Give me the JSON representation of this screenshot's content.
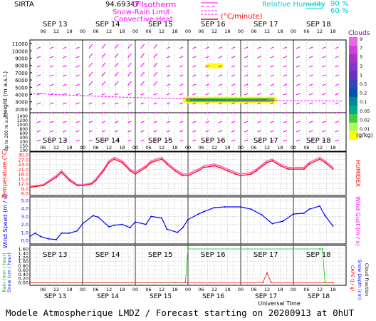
{
  "header": {
    "station": "SIRTA",
    "coords": "94.69347",
    "legend": {
      "isotherm": "0°Isotherm",
      "snow_rain_limit": "Snow-Rain Limit",
      "convective_heat": "Convective Heat.",
      "convective_unit": "(°C/minute)",
      "rh_label": "Relative Humidity",
      "rh_high": "90 %",
      "rh_mid": "60 %"
    }
  },
  "footer_text": "Modele Atmospherique LMDZ / Forecast starting on 20200913 at 0hUT",
  "colors": {
    "wind": "#ff00ff",
    "temperature": "#ff0000",
    "humidex": "#ff66cc",
    "wind_speed": "#0000ff",
    "rain": "#00cc00",
    "cape": "#ff0000",
    "snow": "#0000ff",
    "cloud_scale": [
      "#ffff00",
      "#aaff55",
      "#44cc44",
      "#00aa88",
      "#008899",
      "#0055aa",
      "#3344bb",
      "#6633bb",
      "#8833cc",
      "#aa33cc",
      "#cc44dd",
      "#ee66ee"
    ]
  },
  "chart_data": [
    {
      "type": "heatmap",
      "panel": "clouds-wind",
      "ylabel": "Height  (m a.s.l.)",
      "ylabel_lower": "Up to 200 m a.s.l.",
      "yticks_upper": [
        11000,
        10000,
        9000,
        8000,
        7000,
        6000,
        5000,
        4000,
        3000,
        2000
      ],
      "yticks_lower": [
        1400,
        1200,
        1000,
        800,
        600,
        400,
        200,
        150,
        100
      ],
      "cloud_scale_title": "Clouds",
      "cloud_scale_labels": [
        "9",
        "7",
        "5",
        "3",
        "1",
        "0.5",
        "0.2",
        "0.1",
        "0.05",
        "0.02",
        "0.01"
      ],
      "cloud_scale_unit": "(g/kg)",
      "cloud_layers": [
        {
          "start_day": 3.33,
          "end_day": 3.67,
          "alt_low": 7600,
          "alt_high": 8300,
          "max_value": 0.02
        },
        {
          "start_day": 2.9,
          "end_day": 4.7,
          "alt_low": 2800,
          "alt_high": 3700,
          "max_value": 0.5
        }
      ]
    },
    {
      "type": "line",
      "panel": "temperature",
      "ylabel": "Temperature (°C)",
      "y2label": "HUMIDEX",
      "yticks": [
        "30.0",
        "27.0",
        "24.0",
        "21.0",
        "18.0",
        "15.0",
        "12.0",
        "9.0",
        "6.0"
      ],
      "ylim": [
        6,
        32
      ],
      "x_day": [
        0.0,
        0.25,
        0.5,
        0.6,
        0.75,
        0.9,
        1.0,
        1.17,
        1.25,
        1.4,
        1.5,
        1.6,
        1.75,
        1.9,
        2.0,
        2.2,
        2.3,
        2.5,
        2.6,
        2.75,
        2.9,
        3.0,
        3.2,
        3.3,
        3.5,
        3.6,
        3.75,
        3.9,
        4.0,
        4.2,
        4.3,
        4.5,
        4.6,
        4.75,
        4.9,
        5.0,
        5.2,
        5.3,
        5.5,
        5.6,
        5.75
      ],
      "series": [
        {
          "name": "Temperature",
          "values": [
            11,
            12,
            17,
            20,
            15,
            12,
            12,
            13,
            15,
            21,
            26,
            28,
            26,
            21,
            19,
            23,
            26,
            28,
            25,
            21,
            18,
            18,
            21,
            23,
            24,
            23,
            21,
            19,
            18,
            19,
            21,
            26,
            27,
            24,
            22,
            22,
            22,
            25,
            28,
            26,
            22
          ]
        },
        {
          "name": "Humidex",
          "values": [
            11.5,
            12.5,
            18,
            21,
            16,
            12.5,
            12.5,
            13.5,
            16,
            22,
            27,
            29,
            27,
            22,
            20,
            24,
            27,
            29,
            26,
            22,
            19,
            19,
            22,
            24,
            25,
            24,
            22,
            20,
            19,
            20,
            22,
            27,
            28,
            25,
            23,
            23,
            23,
            26,
            29,
            27,
            23
          ]
        }
      ]
    },
    {
      "type": "line",
      "panel": "wind",
      "ylabel": "Wind Speed (m / s)",
      "y2label": "Wind Gust (m / s)",
      "yticks": [
        "5.0",
        "4.0",
        "3.0",
        "2.0",
        "1.0",
        "0.0"
      ],
      "ylim": [
        0,
        5
      ],
      "x_day": [
        0.0,
        0.1,
        0.2,
        0.35,
        0.5,
        0.6,
        0.75,
        0.9,
        1.0,
        1.2,
        1.3,
        1.5,
        1.6,
        1.75,
        1.9,
        2.0,
        2.2,
        2.3,
        2.5,
        2.6,
        2.8,
        2.9,
        3.0,
        3.2,
        3.3,
        3.5,
        3.7,
        4.0,
        4.2,
        4.4,
        4.6,
        4.8,
        5.0,
        5.2,
        5.3,
        5.5,
        5.6,
        5.75
      ],
      "series": [
        {
          "name": "Wind speed",
          "values": [
            0.5,
            0.9,
            0.5,
            0.2,
            0.1,
            0.9,
            0.9,
            1.2,
            2.1,
            3.1,
            2.9,
            1.7,
            1.9,
            2.0,
            1.6,
            2.3,
            2.0,
            3.0,
            2.8,
            1.4,
            1.0,
            1.6,
            2.6,
            3.3,
            3.6,
            4.1,
            4.2,
            4.2,
            3.9,
            3.2,
            2.1,
            2.4,
            3.3,
            3.4,
            3.9,
            4.3,
            3.1,
            1.8
          ]
        }
      ]
    },
    {
      "type": "line",
      "panel": "precipitation",
      "ylabel_left": "Rain (mm / hour)",
      "ylabel_left2": "Snow (cm / hour)",
      "ylabel_right": "CAPE (J / g)",
      "ylabel_right2": "Snow Depth (cm)",
      "ylabel_right3": "Cloud Fraction",
      "yticks": [
        "1.60",
        "1.40",
        "1.20",
        "1.00",
        "0.80",
        "0.60",
        "0.40",
        "0.20",
        "0.00"
      ],
      "ylim": [
        0,
        1.6
      ],
      "series": [
        {
          "name": "Cloud fraction",
          "x_day": [
            0.0,
            2.75,
            2.95,
            3.0,
            5.5,
            5.55,
            5.6,
            5.75
          ],
          "values": [
            0,
            0,
            0,
            1.6,
            1.6,
            1.6,
            0,
            0
          ]
        },
        {
          "name": "Rain",
          "x_day": [
            0.0,
            4.42,
            4.5,
            4.58,
            5.75
          ],
          "values": [
            0,
            0,
            0.45,
            0,
            0
          ]
        }
      ]
    }
  ],
  "time_axis": {
    "days": [
      "SEP 13",
      "SEP 14",
      "SEP 15",
      "SEP 16",
      "SEP 17",
      "SEP 18"
    ],
    "hours": [
      "06",
      "12",
      "18",
      "00"
    ],
    "xlabel": "Universal Time"
  }
}
